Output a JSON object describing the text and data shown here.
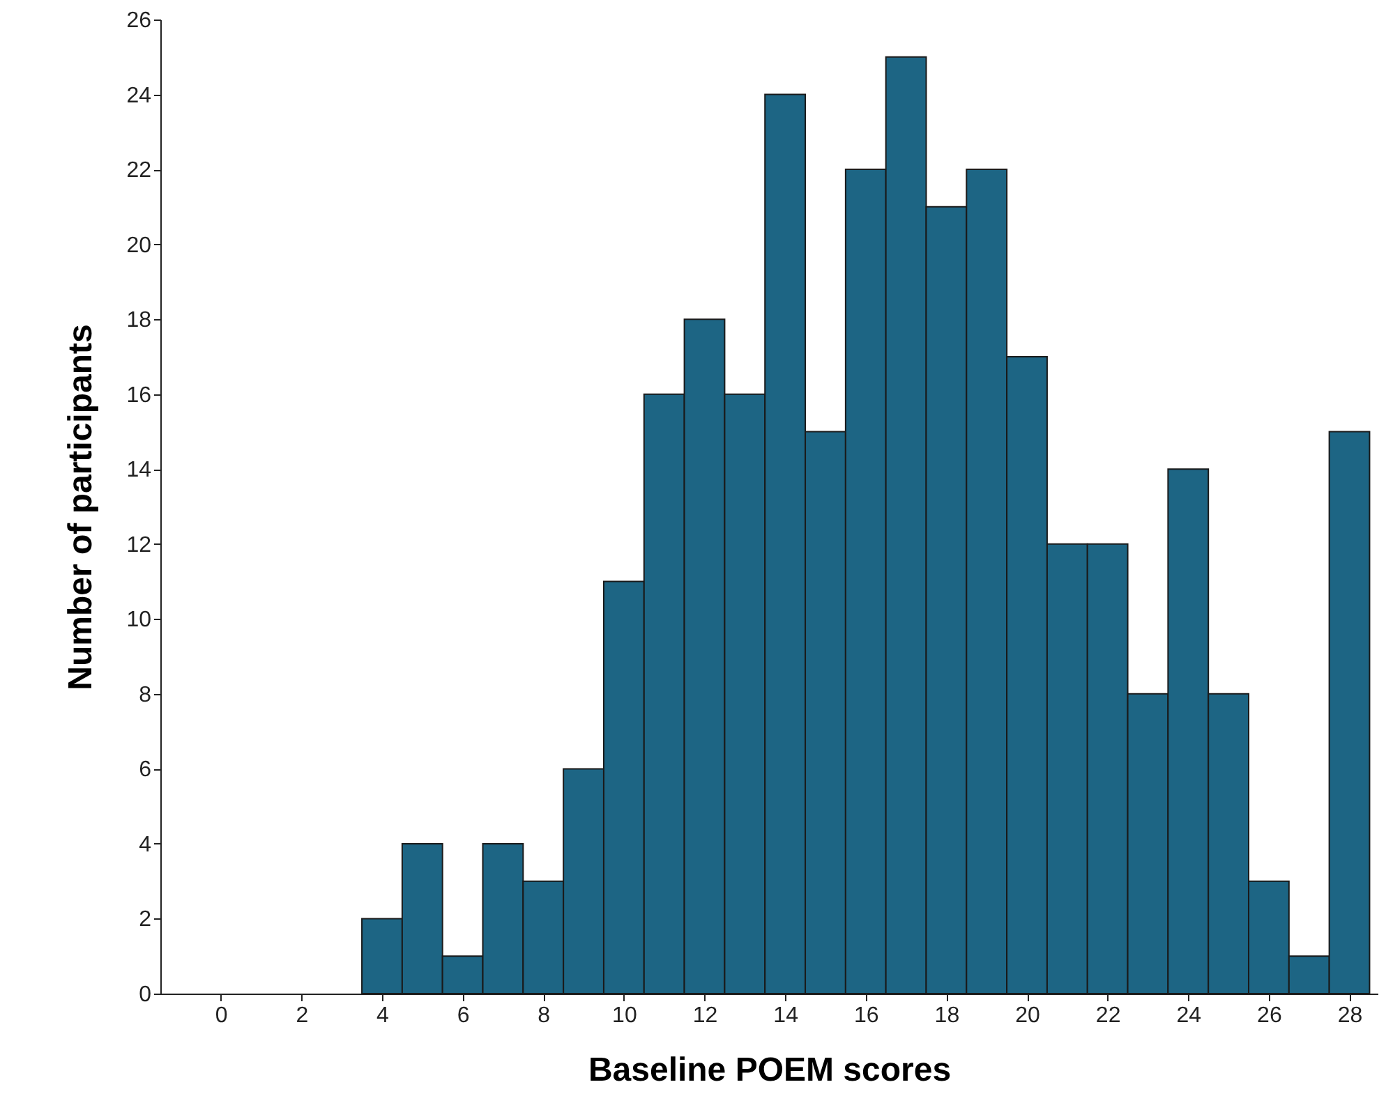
{
  "chart_data": {
    "type": "histogram",
    "xlabel": "Baseline POEM scores",
    "ylabel": "Number of participants",
    "bins": [
      3.5,
      4.5,
      5.5,
      6.5,
      7.5,
      8.5,
      9.5,
      10.5,
      11.5,
      12.5,
      13.5,
      14.5,
      15.5,
      16.5,
      17.5,
      18.5,
      19.5,
      20.5,
      21.5,
      22.5,
      23.5,
      24.5,
      25.5,
      26.5,
      27.5,
      28.5
    ],
    "values": [
      2,
      4,
      1,
      4,
      3,
      6,
      11,
      16,
      18,
      16,
      24,
      15,
      22,
      25,
      21,
      22,
      17,
      12,
      12,
      8,
      14,
      8,
      3,
      1,
      15
    ],
    "color": "#1d6584",
    "xlim": [
      -1.5,
      28.7
    ],
    "xticks": [
      0,
      2,
      4,
      6,
      8,
      10,
      12,
      14,
      16,
      18,
      20,
      22,
      24,
      26,
      28
    ],
    "ylim": [
      0,
      26
    ],
    "yticks": [
      0,
      2,
      4,
      6,
      8,
      10,
      12,
      14,
      16,
      18,
      20,
      22,
      24,
      26
    ],
    "grid": false
  }
}
